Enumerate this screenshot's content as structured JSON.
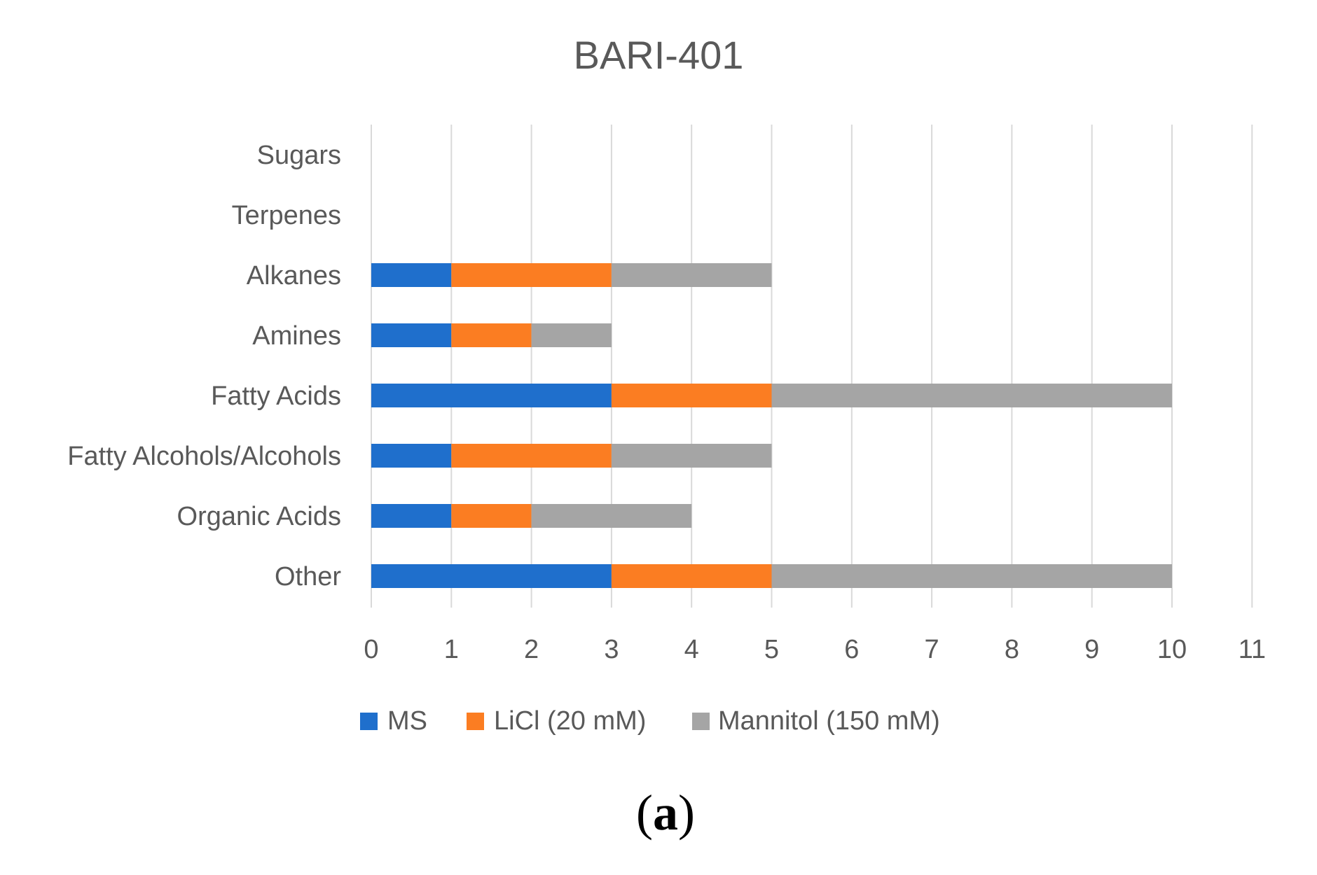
{
  "chart_data": {
    "type": "bar",
    "orientation": "horizontal",
    "stacked": true,
    "title": "BARI-401",
    "caption": {
      "open": "(",
      "label": "a",
      "close": ")"
    },
    "categories": [
      "Sugars",
      "Terpenes",
      "Alkanes",
      "Amines",
      "Fatty Acids",
      "Fatty Alcohols/Alcohols",
      "Organic Acids",
      "Other"
    ],
    "series": [
      {
        "name": "MS",
        "color": "#1f6fcc",
        "values": [
          0,
          0,
          1,
          1,
          3,
          1,
          1,
          3
        ]
      },
      {
        "name": "LiCl (20 mM)",
        "color": "#fb7d22",
        "values": [
          0,
          0,
          2,
          1,
          2,
          2,
          1,
          2
        ]
      },
      {
        "name": "Mannitol (150 mM)",
        "color": "#a5a5a5",
        "values": [
          0,
          0,
          2,
          1,
          5,
          2,
          2,
          5
        ]
      }
    ],
    "xlim": [
      0,
      11
    ],
    "xticks": [
      "0",
      "1",
      "2",
      "3",
      "4",
      "5",
      "6",
      "7",
      "8",
      "9",
      "10",
      "11"
    ],
    "grid": true,
    "legend_position": "bottom",
    "xlabel": "",
    "ylabel": ""
  }
}
